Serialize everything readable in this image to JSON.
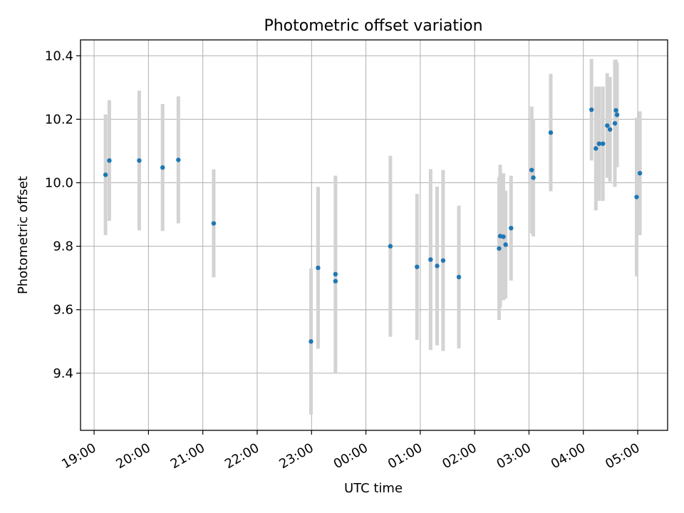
{
  "chart_data": {
    "type": "scatter",
    "title": "Photometric offset variation",
    "xlabel": "UTC time",
    "ylabel": "Photometric offset",
    "xlim": [
      -0.25,
      10.55
    ],
    "ylim": [
      9.22,
      10.45
    ],
    "grid": true,
    "x_ticks": [
      0,
      1,
      2,
      3,
      4,
      5,
      6,
      7,
      8,
      9,
      10
    ],
    "x_tick_labels": [
      "19:00",
      "20:00",
      "21:00",
      "22:00",
      "23:00",
      "00:00",
      "01:00",
      "02:00",
      "03:00",
      "04:00",
      "05:00"
    ],
    "y_ticks": [
      9.4,
      9.6,
      9.8,
      10.0,
      10.2,
      10.4
    ],
    "y_tick_labels": [
      "9.4",
      "9.6",
      "9.8",
      "10.0",
      "10.2",
      "10.4"
    ],
    "x_unit": "hours since 19:00 UTC",
    "marker_color": "#1f77b4",
    "errorbar_color": "#d3d3d3",
    "points": [
      {
        "x": 0.21,
        "y": 10.025,
        "err": 0.19
      },
      {
        "x": 0.28,
        "y": 10.07,
        "err": 0.19
      },
      {
        "x": 0.83,
        "y": 10.07,
        "err": 0.22
      },
      {
        "x": 1.26,
        "y": 10.048,
        "err": 0.2
      },
      {
        "x": 1.55,
        "y": 10.072,
        "err": 0.2
      },
      {
        "x": 2.2,
        "y": 9.872,
        "err": 0.17
      },
      {
        "x": 3.99,
        "y": 9.5,
        "err": 0.23
      },
      {
        "x": 4.12,
        "y": 9.732,
        "err": 0.255
      },
      {
        "x": 4.44,
        "y": 9.712,
        "err": 0.31
      },
      {
        "x": 4.44,
        "y": 9.69,
        "err": 0.0
      },
      {
        "x": 5.45,
        "y": 9.8,
        "err": 0.285
      },
      {
        "x": 5.94,
        "y": 9.735,
        "err": 0.23
      },
      {
        "x": 6.19,
        "y": 9.758,
        "err": 0.285
      },
      {
        "x": 6.31,
        "y": 9.738,
        "err": 0.25
      },
      {
        "x": 6.42,
        "y": 9.755,
        "err": 0.285
      },
      {
        "x": 6.71,
        "y": 9.703,
        "err": 0.225
      },
      {
        "x": 7.45,
        "y": 9.793,
        "err": 0.225
      },
      {
        "x": 7.47,
        "y": 9.832,
        "err": 0.225
      },
      {
        "x": 7.53,
        "y": 9.83,
        "err": 0.2
      },
      {
        "x": 7.57,
        "y": 9.805,
        "err": 0.17
      },
      {
        "x": 7.67,
        "y": 9.857,
        "err": 0.165
      },
      {
        "x": 8.05,
        "y": 10.04,
        "err": 0.2
      },
      {
        "x": 8.08,
        "y": 10.016,
        "err": 0.185
      },
      {
        "x": 8.4,
        "y": 10.158,
        "err": 0.185
      },
      {
        "x": 9.15,
        "y": 10.23,
        "err": 0.16
      },
      {
        "x": 9.23,
        "y": 10.108,
        "err": 0.195
      },
      {
        "x": 9.29,
        "y": 10.123,
        "err": 0.18
      },
      {
        "x": 9.36,
        "y": 10.123,
        "err": 0.18
      },
      {
        "x": 9.44,
        "y": 10.18,
        "err": 0.165
      },
      {
        "x": 9.49,
        "y": 10.168,
        "err": 0.165
      },
      {
        "x": 9.58,
        "y": 10.187,
        "err": 0.2
      },
      {
        "x": 9.6,
        "y": 10.228,
        "err": 0.16
      },
      {
        "x": 9.62,
        "y": 10.214,
        "err": 0.165
      },
      {
        "x": 9.98,
        "y": 9.955,
        "err": 0.25
      },
      {
        "x": 10.04,
        "y": 10.03,
        "err": 0.195
      }
    ]
  }
}
